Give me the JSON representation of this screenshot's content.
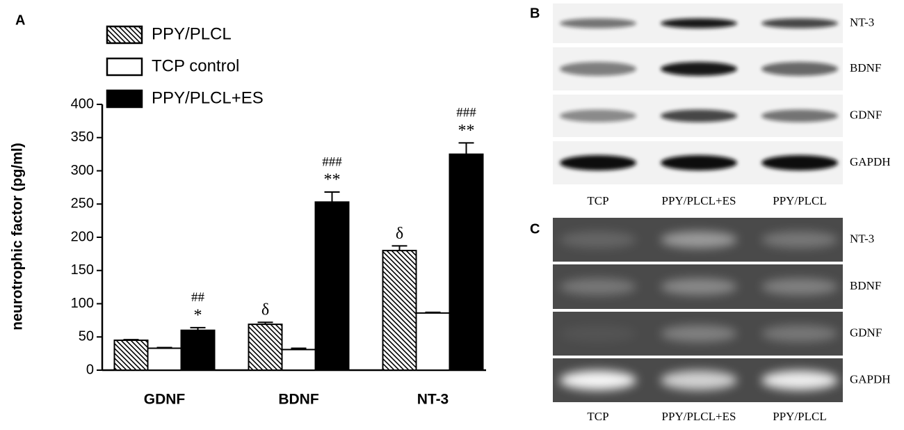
{
  "chart_data": {
    "type": "bar",
    "panel_label": "A",
    "y_label": "neurotrophic factor (pg/ml)",
    "categories": [
      "GDNF",
      "BDNF",
      "NT-3"
    ],
    "series": [
      {
        "name": "PPY/PLCL",
        "color": "#000000",
        "hatch": true,
        "values": [
          45,
          69,
          180
        ],
        "errors": [
          1,
          3,
          7
        ]
      },
      {
        "name": "TCP control",
        "color": "#ffffff",
        "hatch": false,
        "values": [
          33,
          31,
          86
        ],
        "errors": [
          1,
          2,
          1
        ]
      },
      {
        "name": "PPY/PLCL+ES",
        "color": "#000000",
        "hatch": false,
        "values": [
          60,
          253,
          325
        ],
        "errors": [
          4,
          15,
          17
        ]
      }
    ],
    "annotations": [
      {
        "series": 2,
        "category": 0,
        "text": [
          "##",
          "*"
        ]
      },
      {
        "series": 0,
        "category": 1,
        "text": [
          "δ"
        ]
      },
      {
        "series": 2,
        "category": 1,
        "text": [
          "###",
          "**"
        ]
      },
      {
        "series": 0,
        "category": 2,
        "text": [
          "δ"
        ]
      },
      {
        "series": 2,
        "category": 2,
        "text": [
          "###",
          "**"
        ]
      }
    ],
    "ylim": [
      0,
      400
    ],
    "yticks": [
      0,
      50,
      100,
      150,
      200,
      250,
      300,
      350,
      400
    ]
  },
  "blots": {
    "B": {
      "label": "B",
      "rows": [
        "NT-3",
        "BDNF",
        "GDNF",
        "GAPDH"
      ],
      "lanes": [
        "TCP",
        "PPY/PLCL+ES",
        "PPY/PLCL"
      ]
    },
    "C": {
      "label": "C",
      "rows": [
        "NT-3",
        "BDNF",
        "GDNF",
        "GAPDH"
      ],
      "lanes": [
        "TCP",
        "PPY/PLCL+ES",
        "PPY/PLCL"
      ]
    }
  }
}
